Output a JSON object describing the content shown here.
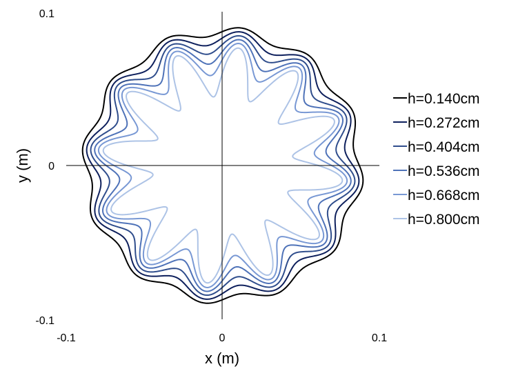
{
  "chart_data": {
    "type": "line",
    "title": "",
    "xlabel": "x (m)",
    "ylabel": "y (m)",
    "xlim": [
      -0.1,
      0.1
    ],
    "ylim": [
      -0.1,
      0.1
    ],
    "grid": false,
    "legend_position": "right",
    "x_ticks": [
      "-0.1",
      "0",
      "0.1"
    ],
    "y_ticks": [
      "0.1",
      "0",
      "-0.1"
    ],
    "curve_shape": {
      "lobes": 12,
      "angle_offset_deg": 90
    },
    "series": [
      {
        "name": "h=0.140cm",
        "color": "#000000",
        "mean_radius": 0.0872,
        "amplitude": 0.003
      },
      {
        "name": "h=0.272cm",
        "color": "#0d1f5c",
        "mean_radius": 0.0831,
        "amplitude": 0.0045
      },
      {
        "name": "h=0.404cm",
        "color": "#2f4d8c",
        "mean_radius": 0.079,
        "amplitude": 0.006
      },
      {
        "name": "h=0.536cm",
        "color": "#4e72b8",
        "mean_radius": 0.0745,
        "amplitude": 0.008
      },
      {
        "name": "h=0.668cm",
        "color": "#7898d4",
        "mean_radius": 0.0695,
        "amplitude": 0.0105
      },
      {
        "name": "h=0.800cm",
        "color": "#adc3e6",
        "mean_radius": 0.061,
        "amplitude": 0.016
      }
    ]
  }
}
